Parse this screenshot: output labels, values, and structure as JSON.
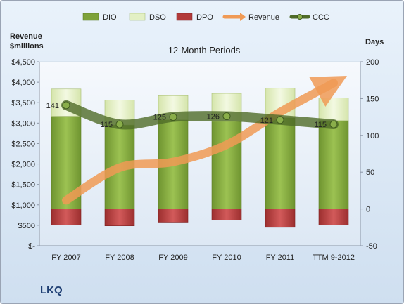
{
  "company": "LKQ",
  "chart_data": {
    "type": "bar",
    "subtitle": "12-Month Periods",
    "categories": [
      "FY 2007",
      "FY 2008",
      "FY 2009",
      "FY 2010",
      "FY 2011",
      "TTM 9-2012"
    ],
    "left_axis": {
      "label_line1": "Revenue",
      "label_line2": "$millions",
      "range": [
        0,
        4500
      ],
      "ticks": [
        0,
        500,
        1000,
        1500,
        2000,
        2500,
        3000,
        3500,
        4000,
        4500
      ],
      "tick_labels": [
        "$-",
        "$500",
        "$1,000",
        "$1,500",
        "$2,000",
        "$2,500",
        "$3,000",
        "$3,500",
        "$4,000",
        "$4,500"
      ]
    },
    "right_axis": {
      "label": "Days",
      "range": [
        -50,
        200
      ],
      "ticks": [
        -50,
        0,
        50,
        100,
        150,
        200
      ],
      "tick_labels": [
        "-50",
        "0",
        "50",
        "100",
        "150",
        "200"
      ]
    },
    "series": [
      {
        "name": "DIO",
        "axis": "right",
        "values": [
          126,
          114,
          121,
          119,
          124,
          120
        ],
        "color": "#7ea23a"
      },
      {
        "name": "DSO",
        "axis": "right",
        "values": [
          37,
          34,
          33,
          38,
          40,
          31
        ],
        "color": "#e3f0c4"
      },
      {
        "name": "DPO",
        "axis": "right",
        "values": [
          -22,
          -23,
          -18,
          -15,
          -25,
          -22
        ],
        "color": "#b23a3a"
      },
      {
        "name": "Revenue",
        "axis": "left",
        "values": [
          1110,
          1910,
          2050,
          2470,
          3270,
          3980
        ],
        "color": "#f0a060"
      },
      {
        "name": "CCC",
        "axis": "right",
        "values": [
          141,
          115,
          125,
          126,
          121,
          115
        ],
        "color": "#4f6b28",
        "data_labels": [
          "141",
          "115",
          "125",
          "126",
          "121",
          "115"
        ]
      }
    ],
    "grid": false,
    "legend": "top"
  }
}
